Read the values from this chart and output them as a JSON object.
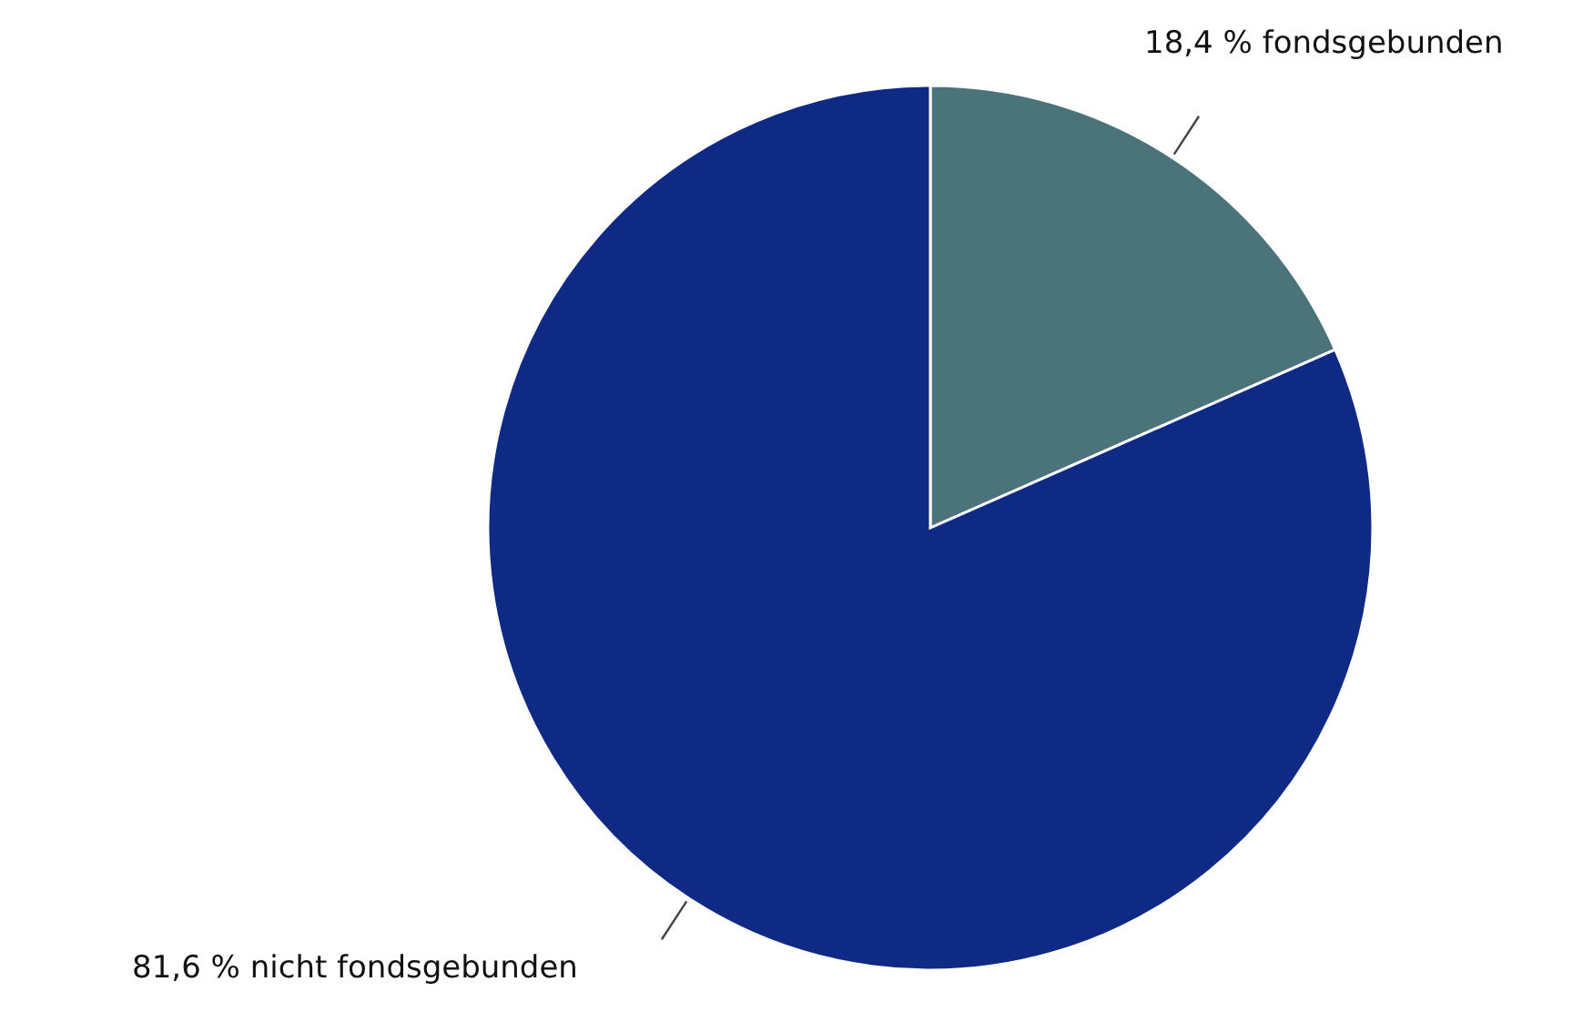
{
  "chart_data": {
    "type": "pie",
    "categories": [
      "fondsgebunden",
      "nicht fondsgebunden"
    ],
    "values": [
      18.4,
      81.6
    ],
    "value_labels": [
      "18,4 %",
      "81,6 %"
    ],
    "colors": [
      "#4a7479",
      "#0f2a85"
    ]
  }
}
